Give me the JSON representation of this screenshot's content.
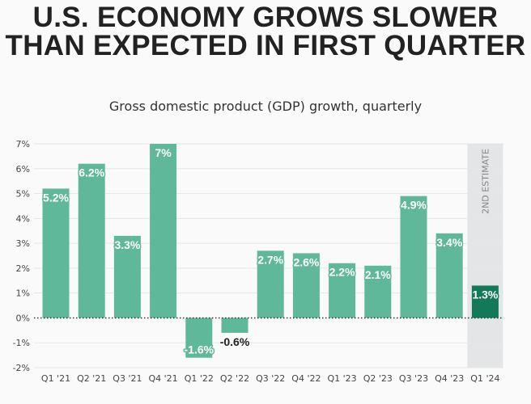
{
  "title": "U.S. ECONOMY GROWS SLOWER THAN EXPECTED IN FIRST QUARTER",
  "subtitle": "Gross domestic product (GDP) growth, quarterly",
  "colors": {
    "bar": "#5fb89a",
    "bar_highlight": "#127a58",
    "estimate_band": "#e3e5e6",
    "grid": "#e6e6e6",
    "zero_line": "#333333"
  },
  "chart_data": {
    "type": "bar",
    "title": "U.S. ECONOMY GROWS SLOWER THAN EXPECTED IN FIRST QUARTER",
    "subtitle": "Gross domestic product (GDP) growth, quarterly",
    "xlabel": "",
    "ylabel": "",
    "ylim": [
      -2,
      7
    ],
    "y_ticks": [
      7,
      6,
      5,
      4,
      3,
      2,
      1,
      0,
      -1,
      -2
    ],
    "y_tick_labels": [
      "7%",
      "6%",
      "5%",
      "4%",
      "3%",
      "2%",
      "1%",
      "0%",
      "-1%",
      "-2%"
    ],
    "categories": [
      "Q1 '21",
      "Q2 '21",
      "Q3 '21",
      "Q4 '21",
      "Q1 '22",
      "Q2 '22",
      "Q3 '22",
      "Q4 '22",
      "Q1 '23",
      "Q2 '23",
      "Q3 '23",
      "Q4 '23",
      "Q1 '24"
    ],
    "values": [
      5.2,
      6.2,
      3.3,
      7.0,
      -1.6,
      -0.6,
      2.7,
      2.6,
      2.2,
      2.1,
      4.9,
      3.4,
      1.3
    ],
    "value_labels": [
      "5.2%",
      "6.2%",
      "3.3%",
      "7%",
      "-1.6%",
      "-0.6%",
      "2.7%",
      "2.6%",
      "2.2%",
      "2.1%",
      "4.9%",
      "3.4%",
      "1.3%"
    ],
    "highlight_index": 12,
    "annotation": "2ND ESTIMATE",
    "grid": true
  }
}
